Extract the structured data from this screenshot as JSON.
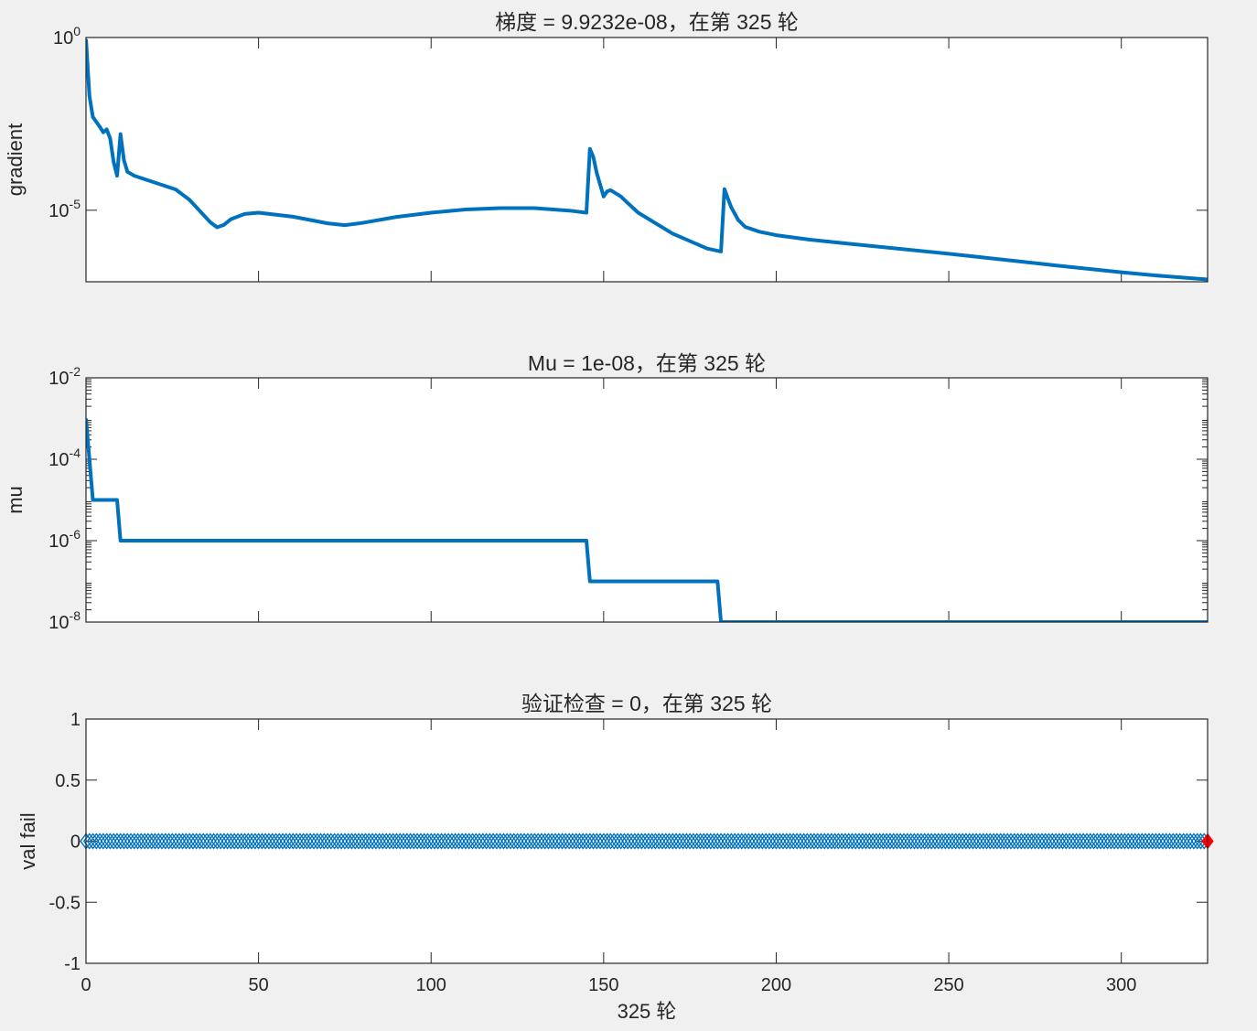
{
  "figure": {
    "background": "#f0f0f0",
    "line_color": "#0072bd",
    "marker_color": "#0072bd",
    "last_marker_color": "#ff0000"
  },
  "xlabel": "325 轮",
  "x_ticks": [
    0,
    50,
    100,
    150,
    200,
    250,
    300
  ],
  "chart_data": [
    {
      "type": "line",
      "title": "梯度 = 9.9232e-08，在第 325 轮",
      "ylabel": "gradient",
      "yscale": "log",
      "xlim": [
        0,
        325
      ],
      "ylim_exp": [
        -7.07,
        0
      ],
      "y_ticks": [
        {
          "base": "10",
          "exp": "0",
          "value": 1
        },
        {
          "base": "10",
          "exp": "-5",
          "value": 1e-05
        }
      ],
      "x": [
        0,
        1,
        2,
        4,
        5,
        6,
        7,
        8,
        9,
        10,
        11,
        12,
        14,
        20,
        26,
        30,
        33,
        36,
        38,
        40,
        42,
        46,
        50,
        60,
        70,
        75,
        80,
        90,
        100,
        110,
        120,
        130,
        140,
        145,
        146,
        147,
        148,
        150,
        151,
        152,
        153,
        155,
        157,
        160,
        170,
        180,
        184,
        185,
        186,
        187,
        189,
        191,
        195,
        200,
        210,
        220,
        250,
        280,
        300,
        310,
        325
      ],
      "y": [
        0.9,
        0.02,
        0.005,
        0.0026,
        0.0018,
        0.0022,
        0.0012,
        0.00025,
        0.0001,
        0.0016,
        0.00028,
        0.00013,
        0.0001,
        6.3e-05,
        4e-05,
        2e-05,
        9.5e-06,
        4.5e-06,
        3.2e-06,
        3.8e-06,
        5.5e-06,
        7.8e-06,
        8.5e-06,
        6.5e-06,
        4.2e-06,
        3.7e-06,
        4.3e-06,
        6.4e-06,
        8.5e-06,
        1.05e-05,
        1.15e-05,
        1.15e-05,
        9.8e-06,
        8.5e-06,
        0.0006,
        0.00035,
        0.00012,
        2.5e-05,
        3.5e-05,
        3.8e-05,
        3.3e-05,
        2.5e-05,
        1.6e-05,
        8.5e-06,
        2.1e-06,
        7.8e-07,
        6.4e-07,
        4.1e-05,
        2.2e-05,
        1.2e-05,
        5.2e-06,
        3.3e-06,
        2.4e-06,
        1.9e-06,
        1.4e-06,
        1.1e-06,
        5.5e-07,
        2.6e-07,
        1.6e-07,
        1.3e-07,
        9.92e-08
      ]
    },
    {
      "type": "line",
      "title": "Mu = 1e-08，在第 325 轮",
      "ylabel": "mu",
      "yscale": "log",
      "xlim": [
        0,
        325
      ],
      "ylim_exp": [
        -8,
        -2
      ],
      "y_ticks": [
        {
          "base": "10",
          "exp": "-2",
          "value": 0.01
        },
        {
          "base": "10",
          "exp": "-4",
          "value": 0.0001
        },
        {
          "base": "10",
          "exp": "-6",
          "value": 1e-06
        },
        {
          "base": "10",
          "exp": "-8",
          "value": 1e-08
        }
      ],
      "x": [
        0,
        2,
        9,
        10,
        145,
        146,
        183,
        184,
        325
      ],
      "y": [
        0.001,
        1e-05,
        1e-05,
        1e-06,
        1e-06,
        1e-07,
        1e-07,
        1e-08,
        1e-08
      ]
    },
    {
      "type": "scatter",
      "title": "验证检查 = 0，在第 325 轮",
      "ylabel": "val fail",
      "xlim": [
        0,
        325
      ],
      "ylim": [
        -1,
        1
      ],
      "y_ticks": [
        {
          "label": "1",
          "value": 1
        },
        {
          "label": "0.5",
          "value": 0.5
        },
        {
          "label": "0",
          "value": 0
        },
        {
          "label": "-0.5",
          "value": -0.5
        },
        {
          "label": "-1",
          "value": -1
        }
      ],
      "x_range": [
        0,
        325
      ],
      "y_value": 0,
      "last_point": {
        "x": 325,
        "y": 0
      }
    }
  ]
}
